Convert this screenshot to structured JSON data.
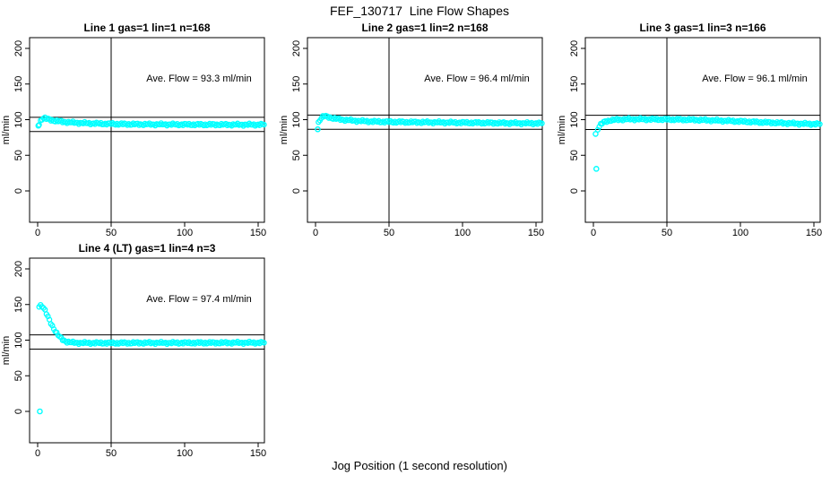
{
  "title": "FEF_130717  Line Flow Shapes",
  "xlabel": "Jog Position (1 second resolution)",
  "colors": {
    "points": "#00ffff",
    "axis": "#000000",
    "background": "#ffffff"
  },
  "chart_data": [
    {
      "type": "scatter",
      "title": "Line 1 gas=1 lin=1 n=168",
      "n": 168,
      "ave_flow": 93.3,
      "annotation": "Ave. Flow =  93.3  ml/min",
      "ylabel": "ml/min",
      "x_ticks": [
        0,
        50,
        100,
        150
      ],
      "y_ticks": [
        0,
        50,
        100,
        150,
        200
      ],
      "xlim": [
        -6,
        154
      ],
      "ylim": [
        -44,
        215
      ],
      "vline_x": 50,
      "hlines": [
        103.3,
        83.3
      ],
      "points": [
        [
          1,
          94
        ],
        [
          2,
          98.5
        ],
        [
          3,
          101
        ],
        [
          4,
          102.3
        ],
        [
          5,
          102
        ],
        [
          6,
          101.3
        ],
        [
          8,
          100.2
        ],
        [
          10,
          99.2
        ],
        [
          12,
          98.4
        ],
        [
          15,
          97.6
        ],
        [
          18,
          96.9
        ],
        [
          22,
          96.2
        ],
        [
          26,
          95.7
        ],
        [
          30,
          95.3
        ],
        [
          35,
          94.9
        ],
        [
          40,
          94.6
        ],
        [
          45,
          94.3
        ],
        [
          50,
          94.1
        ],
        [
          60,
          93.7
        ],
        [
          70,
          93.5
        ],
        [
          80,
          93.4
        ],
        [
          90,
          93.3
        ],
        [
          100,
          93.2
        ],
        [
          110,
          93.1
        ],
        [
          120,
          93.1
        ],
        [
          130,
          93
        ],
        [
          140,
          93
        ],
        [
          154,
          93
        ]
      ],
      "outliers": [
        [
          0.5,
          91.5
        ]
      ]
    },
    {
      "type": "scatter",
      "title": "Line 2 gas=1 lin=2 n=168",
      "n": 168,
      "ave_flow": 96.4,
      "annotation": "Ave. Flow =  96.4  ml/min",
      "ylabel": "ml/min",
      "x_ticks": [
        0,
        50,
        100,
        150
      ],
      "y_ticks": [
        0,
        50,
        100,
        150,
        200
      ],
      "xlim": [
        -6,
        154
      ],
      "ylim": [
        -44,
        215
      ],
      "vline_x": 50,
      "hlines": [
        106.4,
        86.4
      ],
      "points": [
        [
          2,
          96
        ],
        [
          3,
          100
        ],
        [
          4,
          102.5
        ],
        [
          5,
          104
        ],
        [
          6,
          104.8
        ],
        [
          7,
          104.6
        ],
        [
          8,
          104.1
        ],
        [
          10,
          103
        ],
        [
          12,
          102
        ],
        [
          14,
          101.2
        ],
        [
          17,
          100.4
        ],
        [
          20,
          99.7
        ],
        [
          24,
          99
        ],
        [
          28,
          98.4
        ],
        [
          33,
          97.9
        ],
        [
          40,
          97.3
        ],
        [
          50,
          96.9
        ],
        [
          60,
          96.6
        ],
        [
          70,
          96.4
        ],
        [
          80,
          96.2
        ],
        [
          90,
          96
        ],
        [
          100,
          95.8
        ],
        [
          110,
          95.6
        ],
        [
          120,
          95.4
        ],
        [
          130,
          95.2
        ],
        [
          140,
          95
        ],
        [
          154,
          94.8
        ]
      ],
      "outliers": [
        [
          1.5,
          86.5
        ]
      ]
    },
    {
      "type": "scatter",
      "title": "Line 3 gas=1 lin=3 n=166",
      "n": 166,
      "ave_flow": 96.1,
      "annotation": "Ave. Flow =  96.1  ml/min",
      "ylabel": "ml/min",
      "x_ticks": [
        0,
        50,
        100,
        150
      ],
      "y_ticks": [
        0,
        50,
        100,
        150,
        200
      ],
      "xlim": [
        -6,
        154
      ],
      "ylim": [
        -44,
        215
      ],
      "vline_x": 50,
      "hlines": [
        106.1,
        86.1
      ],
      "points": [
        [
          3,
          87
        ],
        [
          4,
          90.5
        ],
        [
          5,
          93
        ],
        [
          6,
          94.8
        ],
        [
          7,
          96.2
        ],
        [
          8,
          97.2
        ],
        [
          10,
          98.4
        ],
        [
          12,
          99.2
        ],
        [
          15,
          99.8
        ],
        [
          18,
          100.2
        ],
        [
          22,
          100.5
        ],
        [
          26,
          100.6
        ],
        [
          30,
          100.6
        ],
        [
          40,
          100.5
        ],
        [
          50,
          100.3
        ],
        [
          60,
          100.1
        ],
        [
          70,
          99.7
        ],
        [
          80,
          99.1
        ],
        [
          90,
          98.4
        ],
        [
          100,
          97.6
        ],
        [
          110,
          96.7
        ],
        [
          120,
          95.9
        ],
        [
          130,
          95.1
        ],
        [
          140,
          94.4
        ],
        [
          154,
          93.7
        ]
      ],
      "outliers": [
        [
          1.5,
          80
        ],
        [
          2,
          31
        ]
      ]
    },
    {
      "type": "scatter",
      "title": "Line 4 (LT) gas=1 lin=4 n=3",
      "n": 3,
      "ave_flow": 97.4,
      "annotation": "Ave. Flow =  97.4  ml/min",
      "ylabel": "ml/min",
      "x_ticks": [
        0,
        50,
        100,
        150
      ],
      "y_ticks": [
        0,
        50,
        100,
        150,
        200
      ],
      "xlim": [
        -6,
        154
      ],
      "ylim": [
        -44,
        215
      ],
      "vline_x": 50,
      "hlines": [
        107.4,
        87.4
      ],
      "points": [
        [
          1,
          148
        ],
        [
          2,
          149
        ],
        [
          3,
          148
        ],
        [
          4,
          145.5
        ],
        [
          5,
          141.5
        ],
        [
          6,
          137
        ],
        [
          7,
          132.5
        ],
        [
          8,
          128
        ],
        [
          9,
          124
        ],
        [
          10,
          120
        ],
        [
          11,
          116.3
        ],
        [
          12,
          112.8
        ],
        [
          13,
          109.7
        ],
        [
          14,
          106.9
        ],
        [
          15,
          104.5
        ],
        [
          16,
          102.4
        ],
        [
          17,
          100.8
        ],
        [
          18,
          99.5
        ],
        [
          19,
          98.5
        ],
        [
          20,
          97.8
        ],
        [
          22,
          97
        ],
        [
          24,
          96.6
        ],
        [
          26,
          96.4
        ],
        [
          28,
          96.2
        ],
        [
          30,
          96.1
        ],
        [
          40,
          96
        ],
        [
          50,
          96
        ],
        [
          60,
          96.1
        ],
        [
          80,
          96.2
        ],
        [
          100,
          96.2
        ],
        [
          120,
          96.3
        ],
        [
          154,
          96.4
        ]
      ],
      "outliers": [
        [
          1.5,
          0
        ]
      ]
    }
  ]
}
